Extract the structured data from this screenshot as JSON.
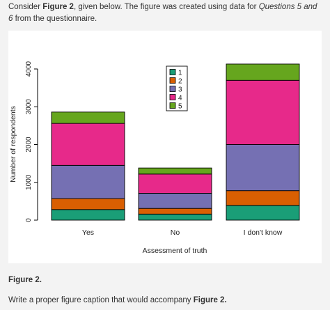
{
  "intro": {
    "prefix": "Consider ",
    "figure_ref": "Figure 2",
    "middle": ", given below. The figure was created using data for ",
    "questions": "Questions 5 and 6",
    "suffix": " from the questionnaire."
  },
  "figure_label": "Figure 2.",
  "instruction": {
    "text": "Write a proper figure caption that would accompany ",
    "figure_ref": "Figure 2."
  },
  "chart_data": {
    "type": "bar",
    "stacked": true,
    "categories": [
      "Yes",
      "No",
      "I don't know"
    ],
    "xlabel": "Assessment of truth",
    "ylabel": "Number of respondents",
    "ylim": [
      0,
      4000
    ],
    "yticks": [
      "0",
      "1000",
      "2000",
      "3000",
      "4000"
    ],
    "series": [
      {
        "name": "1",
        "color": "#1a9e77",
        "values": [
          280,
          160,
          390
        ]
      },
      {
        "name": "2",
        "color": "#d95f02",
        "values": [
          290,
          150,
          390
        ]
      },
      {
        "name": "3",
        "color": "#7570b3",
        "values": [
          880,
          400,
          1220
        ]
      },
      {
        "name": "4",
        "color": "#e7298a",
        "values": [
          1110,
          510,
          1700
        ]
      },
      {
        "name": "5",
        "color": "#66a61e",
        "values": [
          300,
          160,
          430
        ]
      }
    ],
    "legend_position": "top-center",
    "grid": false
  }
}
